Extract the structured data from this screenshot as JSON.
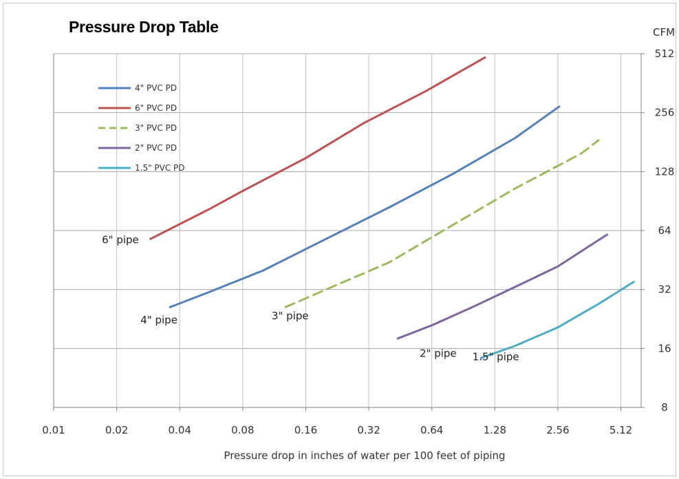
{
  "chart_data": {
    "type": "line",
    "title": "Pressure Drop Table",
    "xlabel": "Pressure drop in inches of water per 100 feet of piping",
    "ylabel": "CFM",
    "x_scale": "log2",
    "y_scale": "log2",
    "xlim": [
      0.01,
      6.4
    ],
    "ylim": [
      8,
      512
    ],
    "x_ticks": [
      "0.01",
      "0.02",
      "0.04",
      "0.08",
      "0.16",
      "0.32",
      "0.64",
      "1.28",
      "2.56",
      "5.12"
    ],
    "x_tick_values": [
      0.01,
      0.02,
      0.04,
      0.08,
      0.16,
      0.32,
      0.64,
      1.28,
      2.56,
      5.12
    ],
    "y_ticks": [
      "8",
      "16",
      "32",
      "64",
      "128",
      "256",
      "512"
    ],
    "y_tick_values": [
      8,
      16,
      32,
      64,
      128,
      256,
      512
    ],
    "grid": {
      "horizontal": true,
      "vertical": true
    },
    "legend_position": "top-left",
    "series": [
      {
        "name": "4\" PVC PD",
        "color": "#4f81bd",
        "dash": false,
        "points": [
          [
            0.036,
            26
          ],
          [
            0.055,
            31
          ],
          [
            0.1,
            40
          ],
          [
            0.2,
            58
          ],
          [
            0.4,
            84
          ],
          [
            0.8,
            124
          ],
          [
            1.6,
            190
          ],
          [
            2.6,
            275
          ]
        ]
      },
      {
        "name": "6\" PVC PD",
        "color": "#c0504d",
        "dash": false,
        "points": [
          [
            0.029,
            58
          ],
          [
            0.055,
            82
          ],
          [
            0.08,
            102
          ],
          [
            0.16,
            150
          ],
          [
            0.3,
            225
          ],
          [
            0.6,
            330
          ],
          [
            1.15,
            490
          ]
        ]
      },
      {
        "name": "3\" PVC PD",
        "color": "#9bbb59",
        "dash": true,
        "points": [
          [
            0.128,
            26
          ],
          [
            0.2,
            32
          ],
          [
            0.4,
            44
          ],
          [
            0.8,
            68
          ],
          [
            1.6,
            105
          ],
          [
            3.3,
            158
          ],
          [
            4.0,
            185
          ]
        ]
      },
      {
        "name": "2\" PVC PD",
        "color": "#8064a2",
        "dash": false,
        "points": [
          [
            0.44,
            18
          ],
          [
            0.64,
            21
          ],
          [
            1.0,
            26
          ],
          [
            1.6,
            33
          ],
          [
            2.56,
            42
          ],
          [
            4.4,
            61
          ]
        ]
      },
      {
        "name": "1.5\" PVC PD",
        "color": "#4bacc6",
        "dash": false,
        "points": [
          [
            1.1,
            14.3
          ],
          [
            1.6,
            16.5
          ],
          [
            2.56,
            20.5
          ],
          [
            4.0,
            27
          ],
          [
            5.9,
            35
          ]
        ]
      }
    ],
    "annotations": [
      {
        "text": "6\" pipe",
        "x": 0.017,
        "y": 55
      },
      {
        "text": "4\" pipe",
        "x": 0.026,
        "y": 21.5
      },
      {
        "text": "3\" pipe",
        "x": 0.11,
        "y": 22.5
      },
      {
        "text": "2\" pipe",
        "x": 0.56,
        "y": 14.5
      },
      {
        "text": "1.5\" pipe",
        "x": 1.0,
        "y": 13.9
      }
    ]
  }
}
